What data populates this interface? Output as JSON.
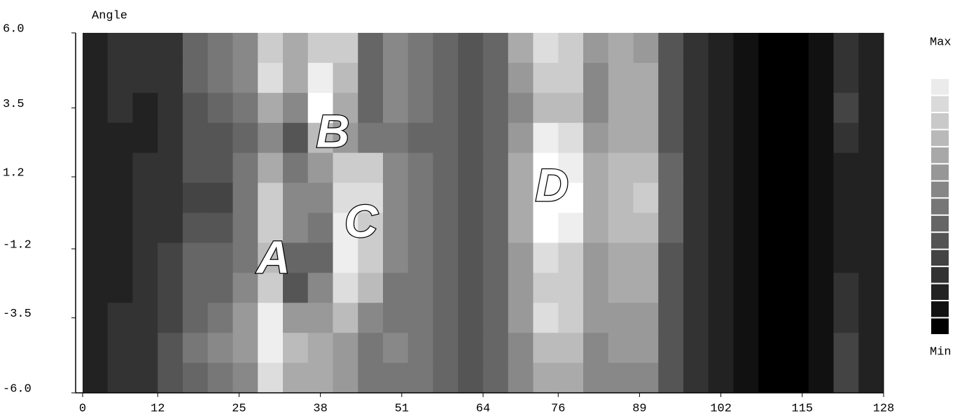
{
  "chart_data": {
    "type": "heatmap",
    "ylabel": "Angle",
    "xlim": [
      0,
      128
    ],
    "ylim": [
      -6,
      6
    ],
    "zlim": [
      0,
      15
    ],
    "xticks": [
      0,
      12,
      25,
      38,
      51,
      64,
      76,
      89,
      102,
      115,
      128
    ],
    "yticks": [
      {
        "value": 6,
        "label": "6.0"
      },
      3.5,
      1.2,
      -1.2,
      -3.5,
      {
        "value": -6,
        "label": "-6.0"
      }
    ],
    "colorbar_labels": [
      "Max",
      "Min"
    ],
    "annotations": [
      "A",
      "B",
      "C",
      "D"
    ],
    "z": [
      [
        2,
        3,
        3,
        3,
        6,
        7,
        8,
        12,
        10,
        12,
        12,
        6,
        8,
        7,
        6,
        5,
        6,
        10,
        13,
        12,
        9,
        10,
        9,
        5,
        3,
        2,
        1,
        0,
        0,
        1,
        3,
        2
      ],
      [
        2,
        3,
        3,
        3,
        6,
        7,
        8,
        13,
        10,
        14,
        11,
        6,
        8,
        7,
        6,
        5,
        6,
        9,
        12,
        12,
        8,
        10,
        10,
        5,
        3,
        2,
        1,
        0,
        0,
        1,
        3,
        2
      ],
      [
        2,
        3,
        2,
        3,
        5,
        6,
        7,
        10,
        8,
        15,
        10,
        6,
        8,
        7,
        6,
        5,
        6,
        8,
        11,
        11,
        8,
        10,
        10,
        5,
        3,
        2,
        1,
        0,
        0,
        1,
        4,
        2
      ],
      [
        2,
        2,
        2,
        3,
        5,
        5,
        6,
        8,
        5,
        11,
        9,
        7,
        7,
        6,
        6,
        5,
        6,
        9,
        14,
        13,
        9,
        10,
        10,
        5,
        3,
        2,
        1,
        0,
        0,
        1,
        3,
        2
      ],
      [
        2,
        2,
        3,
        3,
        5,
        5,
        7,
        10,
        7,
        9,
        12,
        12,
        8,
        7,
        6,
        5,
        6,
        10,
        15,
        14,
        10,
        11,
        11,
        6,
        3,
        2,
        1,
        0,
        0,
        1,
        2,
        2
      ],
      [
        2,
        2,
        3,
        3,
        4,
        4,
        7,
        12,
        8,
        8,
        13,
        13,
        8,
        7,
        6,
        5,
        6,
        10,
        15,
        15,
        10,
        11,
        12,
        6,
        3,
        2,
        1,
        0,
        0,
        1,
        2,
        2
      ],
      [
        2,
        2,
        3,
        3,
        5,
        5,
        7,
        12,
        8,
        7,
        14,
        12,
        8,
        7,
        6,
        5,
        6,
        10,
        15,
        14,
        10,
        11,
        11,
        6,
        3,
        2,
        1,
        0,
        0,
        1,
        2,
        2
      ],
      [
        2,
        2,
        3,
        4,
        6,
        6,
        7,
        11,
        6,
        6,
        14,
        12,
        8,
        7,
        6,
        5,
        6,
        9,
        13,
        12,
        9,
        10,
        10,
        5,
        3,
        2,
        1,
        0,
        0,
        1,
        2,
        2
      ],
      [
        2,
        2,
        3,
        4,
        6,
        6,
        8,
        12,
        5,
        8,
        13,
        11,
        7,
        7,
        6,
        5,
        6,
        9,
        12,
        12,
        9,
        10,
        10,
        5,
        3,
        2,
        1,
        0,
        0,
        1,
        3,
        2
      ],
      [
        2,
        3,
        3,
        4,
        6,
        7,
        9,
        14,
        9,
        9,
        11,
        8,
        7,
        7,
        6,
        5,
        6,
        9,
        13,
        12,
        9,
        9,
        9,
        5,
        3,
        2,
        1,
        0,
        0,
        1,
        3,
        2
      ],
      [
        2,
        3,
        3,
        5,
        7,
        8,
        9,
        14,
        11,
        10,
        9,
        7,
        8,
        7,
        6,
        5,
        6,
        8,
        11,
        11,
        8,
        9,
        9,
        5,
        3,
        2,
        1,
        0,
        0,
        1,
        4,
        2
      ],
      [
        2,
        3,
        3,
        5,
        6,
        7,
        8,
        13,
        10,
        10,
        9,
        7,
        7,
        7,
        6,
        5,
        6,
        8,
        10,
        10,
        8,
        8,
        8,
        5,
        3,
        2,
        1,
        0,
        0,
        1,
        4,
        2
      ]
    ]
  }
}
